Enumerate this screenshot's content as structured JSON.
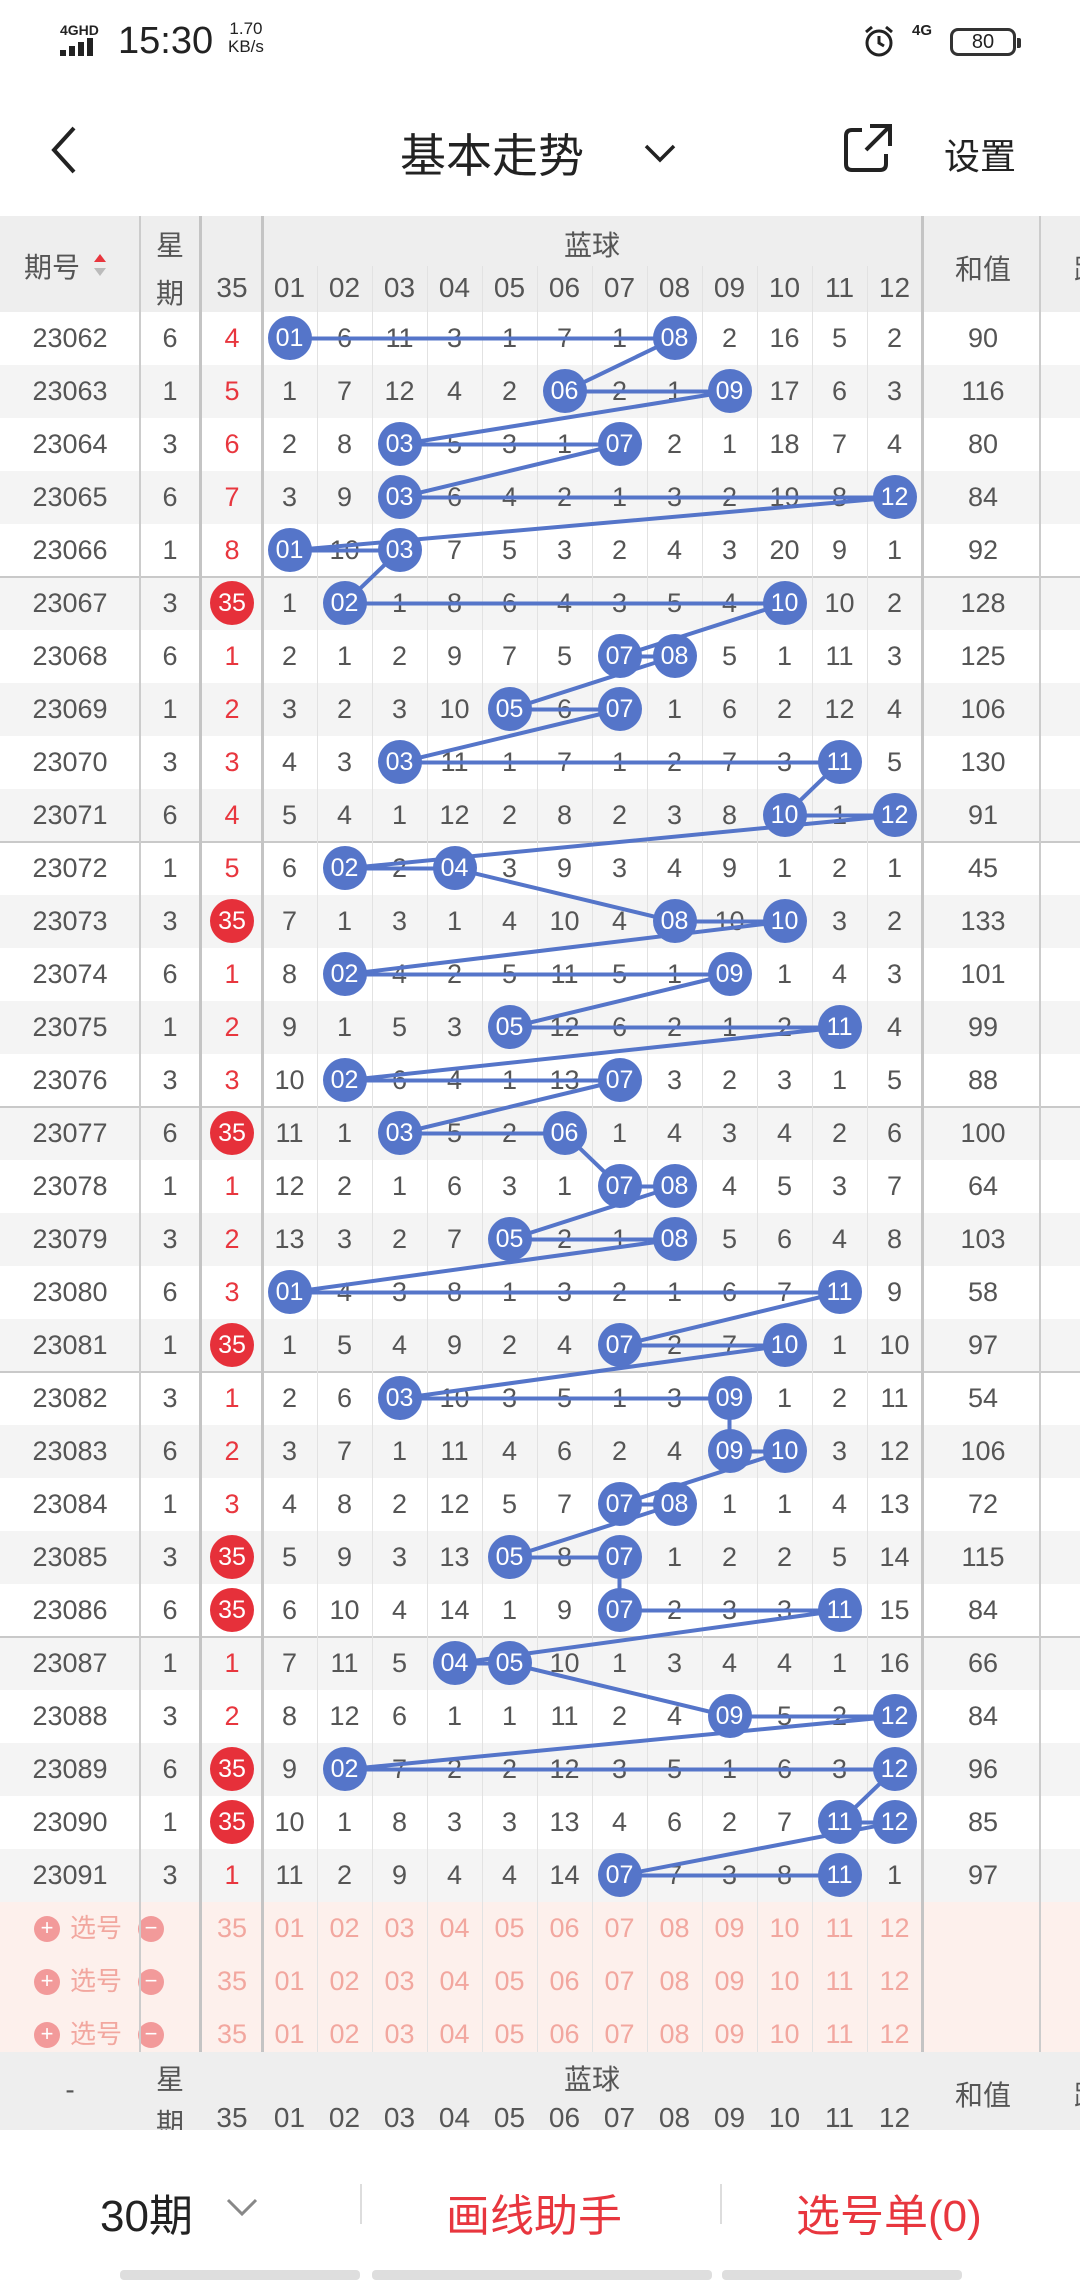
{
  "status_bar": {
    "network": "4GHD",
    "time": "15:30",
    "speed_value": "1.70",
    "speed_unit": "KB/s",
    "network2": "4G",
    "battery": "80"
  },
  "header": {
    "title": "基本走势",
    "settings_label": "设置"
  },
  "table_header": {
    "issue": "期号",
    "week_line1": "星",
    "week_line2": "期",
    "red_col": "35",
    "blue_group": "蓝球",
    "blue_cols": [
      "01",
      "02",
      "03",
      "04",
      "05",
      "06",
      "07",
      "08",
      "09",
      "10",
      "11",
      "12"
    ],
    "sum": "和值",
    "extra": "跟"
  },
  "rows": [
    {
      "issue": "23062",
      "week": "6",
      "red": "4",
      "red_ball": false,
      "cells": [
        "01",
        "6",
        "11",
        "3",
        "1",
        "7",
        "1",
        "08",
        "2",
        "16",
        "5",
        "2"
      ],
      "hits": [
        1,
        8
      ],
      "sum": "90"
    },
    {
      "issue": "23063",
      "week": "1",
      "red": "5",
      "red_ball": false,
      "cells": [
        "1",
        "7",
        "12",
        "4",
        "2",
        "06",
        "2",
        "1",
        "09",
        "17",
        "6",
        "3"
      ],
      "hits": [
        6,
        9
      ],
      "sum": "116"
    },
    {
      "issue": "23064",
      "week": "3",
      "red": "6",
      "red_ball": false,
      "cells": [
        "2",
        "8",
        "03",
        "5",
        "3",
        "1",
        "07",
        "2",
        "1",
        "18",
        "7",
        "4"
      ],
      "hits": [
        3,
        7
      ],
      "sum": "80"
    },
    {
      "issue": "23065",
      "week": "6",
      "red": "7",
      "red_ball": false,
      "cells": [
        "3",
        "9",
        "03",
        "6",
        "4",
        "2",
        "1",
        "3",
        "2",
        "19",
        "8",
        "12"
      ],
      "hits": [
        3,
        12
      ],
      "sum": "84"
    },
    {
      "issue": "23066",
      "week": "1",
      "red": "8",
      "red_ball": false,
      "cells": [
        "01",
        "10",
        "03",
        "7",
        "5",
        "3",
        "2",
        "4",
        "3",
        "20",
        "9",
        "1"
      ],
      "hits": [
        1,
        3
      ],
      "sum": "92"
    },
    {
      "issue": "23067",
      "week": "3",
      "red": "35",
      "red_ball": true,
      "cells": [
        "1",
        "02",
        "1",
        "8",
        "6",
        "4",
        "3",
        "5",
        "4",
        "10",
        "10",
        "2"
      ],
      "hits": [
        2,
        10
      ],
      "sum": "128"
    },
    {
      "issue": "23068",
      "week": "6",
      "red": "1",
      "red_ball": false,
      "cells": [
        "2",
        "1",
        "2",
        "9",
        "7",
        "5",
        "07",
        "08",
        "5",
        "1",
        "11",
        "3"
      ],
      "hits": [
        7,
        8
      ],
      "sum": "125"
    },
    {
      "issue": "23069",
      "week": "1",
      "red": "2",
      "red_ball": false,
      "cells": [
        "3",
        "2",
        "3",
        "10",
        "05",
        "6",
        "07",
        "1",
        "6",
        "2",
        "12",
        "4"
      ],
      "hits": [
        5,
        7
      ],
      "sum": "106"
    },
    {
      "issue": "23070",
      "week": "3",
      "red": "3",
      "red_ball": false,
      "cells": [
        "4",
        "3",
        "03",
        "11",
        "1",
        "7",
        "1",
        "2",
        "7",
        "3",
        "11",
        "5"
      ],
      "hits": [
        3,
        11
      ],
      "sum": "130"
    },
    {
      "issue": "23071",
      "week": "6",
      "red": "4",
      "red_ball": false,
      "cells": [
        "5",
        "4",
        "1",
        "12",
        "2",
        "8",
        "2",
        "3",
        "8",
        "10",
        "1",
        "12"
      ],
      "hits": [
        10,
        12
      ],
      "sum": "91"
    },
    {
      "issue": "23072",
      "week": "1",
      "red": "5",
      "red_ball": false,
      "cells": [
        "6",
        "02",
        "2",
        "04",
        "3",
        "9",
        "3",
        "4",
        "9",
        "1",
        "2",
        "1"
      ],
      "hits": [
        2,
        4
      ],
      "sum": "45"
    },
    {
      "issue": "23073",
      "week": "3",
      "red": "35",
      "red_ball": true,
      "cells": [
        "7",
        "1",
        "3",
        "1",
        "4",
        "10",
        "4",
        "08",
        "10",
        "10",
        "3",
        "2"
      ],
      "hits": [
        8,
        10
      ],
      "sum": "133"
    },
    {
      "issue": "23074",
      "week": "6",
      "red": "1",
      "red_ball": false,
      "cells": [
        "8",
        "02",
        "4",
        "2",
        "5",
        "11",
        "5",
        "1",
        "09",
        "1",
        "4",
        "3"
      ],
      "hits": [
        2,
        9
      ],
      "sum": "101"
    },
    {
      "issue": "23075",
      "week": "1",
      "red": "2",
      "red_ball": false,
      "cells": [
        "9",
        "1",
        "5",
        "3",
        "05",
        "12",
        "6",
        "2",
        "1",
        "2",
        "11",
        "4"
      ],
      "hits": [
        5,
        11
      ],
      "sum": "99"
    },
    {
      "issue": "23076",
      "week": "3",
      "red": "3",
      "red_ball": false,
      "cells": [
        "10",
        "02",
        "6",
        "4",
        "1",
        "13",
        "07",
        "3",
        "2",
        "3",
        "1",
        "5"
      ],
      "hits": [
        2,
        7
      ],
      "sum": "88"
    },
    {
      "issue": "23077",
      "week": "6",
      "red": "35",
      "red_ball": true,
      "cells": [
        "11",
        "1",
        "03",
        "5",
        "2",
        "06",
        "1",
        "4",
        "3",
        "4",
        "2",
        "6"
      ],
      "hits": [
        3,
        6
      ],
      "sum": "100"
    },
    {
      "issue": "23078",
      "week": "1",
      "red": "1",
      "red_ball": false,
      "cells": [
        "12",
        "2",
        "1",
        "6",
        "3",
        "1",
        "07",
        "08",
        "4",
        "5",
        "3",
        "7"
      ],
      "hits": [
        7,
        8
      ],
      "sum": "64"
    },
    {
      "issue": "23079",
      "week": "3",
      "red": "2",
      "red_ball": false,
      "cells": [
        "13",
        "3",
        "2",
        "7",
        "05",
        "2",
        "1",
        "08",
        "5",
        "6",
        "4",
        "8"
      ],
      "hits": [
        5,
        8
      ],
      "sum": "103"
    },
    {
      "issue": "23080",
      "week": "6",
      "red": "3",
      "red_ball": false,
      "cells": [
        "01",
        "4",
        "3",
        "8",
        "1",
        "3",
        "2",
        "1",
        "6",
        "7",
        "11",
        "9"
      ],
      "hits": [
        1,
        11
      ],
      "sum": "58"
    },
    {
      "issue": "23081",
      "week": "1",
      "red": "35",
      "red_ball": true,
      "cells": [
        "1",
        "5",
        "4",
        "9",
        "2",
        "4",
        "07",
        "2",
        "7",
        "10",
        "1",
        "10"
      ],
      "hits": [
        7,
        10
      ],
      "sum": "97"
    },
    {
      "issue": "23082",
      "week": "3",
      "red": "1",
      "red_ball": false,
      "cells": [
        "2",
        "6",
        "03",
        "10",
        "3",
        "5",
        "1",
        "3",
        "09",
        "1",
        "2",
        "11"
      ],
      "hits": [
        3,
        9
      ],
      "sum": "54"
    },
    {
      "issue": "23083",
      "week": "6",
      "red": "2",
      "red_ball": false,
      "cells": [
        "3",
        "7",
        "1",
        "11",
        "4",
        "6",
        "2",
        "4",
        "09",
        "10",
        "3",
        "12"
      ],
      "hits": [
        9,
        10
      ],
      "sum": "106"
    },
    {
      "issue": "23084",
      "week": "1",
      "red": "3",
      "red_ball": false,
      "cells": [
        "4",
        "8",
        "2",
        "12",
        "5",
        "7",
        "07",
        "08",
        "1",
        "1",
        "4",
        "13"
      ],
      "hits": [
        7,
        8
      ],
      "sum": "72"
    },
    {
      "issue": "23085",
      "week": "3",
      "red": "35",
      "red_ball": true,
      "cells": [
        "5",
        "9",
        "3",
        "13",
        "05",
        "8",
        "07",
        "1",
        "2",
        "2",
        "5",
        "14"
      ],
      "hits": [
        5,
        7
      ],
      "sum": "115"
    },
    {
      "issue": "23086",
      "week": "6",
      "red": "35",
      "red_ball": true,
      "cells": [
        "6",
        "10",
        "4",
        "14",
        "1",
        "9",
        "07",
        "2",
        "3",
        "3",
        "11",
        "15"
      ],
      "hits": [
        7,
        11
      ],
      "sum": "84"
    },
    {
      "issue": "23087",
      "week": "1",
      "red": "1",
      "red_ball": false,
      "cells": [
        "7",
        "11",
        "5",
        "04",
        "05",
        "10",
        "1",
        "3",
        "4",
        "4",
        "1",
        "16"
      ],
      "hits": [
        4,
        5
      ],
      "sum": "66"
    },
    {
      "issue": "23088",
      "week": "3",
      "red": "2",
      "red_ball": false,
      "cells": [
        "8",
        "12",
        "6",
        "1",
        "1",
        "11",
        "2",
        "4",
        "09",
        "5",
        "2",
        "12"
      ],
      "hits": [
        9,
        12
      ],
      "sum": "84"
    },
    {
      "issue": "23089",
      "week": "6",
      "red": "35",
      "red_ball": true,
      "cells": [
        "9",
        "02",
        "7",
        "2",
        "2",
        "12",
        "3",
        "5",
        "1",
        "6",
        "3",
        "12"
      ],
      "hits": [
        2,
        12
      ],
      "sum": "96"
    },
    {
      "issue": "23090",
      "week": "1",
      "red": "35",
      "red_ball": true,
      "cells": [
        "10",
        "1",
        "8",
        "3",
        "3",
        "13",
        "4",
        "6",
        "2",
        "7",
        "11",
        "12"
      ],
      "hits": [
        11,
        12
      ],
      "sum": "85"
    },
    {
      "issue": "23091",
      "week": "3",
      "red": "1",
      "red_ball": false,
      "cells": [
        "11",
        "2",
        "9",
        "4",
        "4",
        "14",
        "07",
        "7",
        "3",
        "8",
        "11",
        "1"
      ],
      "hits": [
        7,
        11
      ],
      "sum": "97"
    }
  ],
  "pick_rows": [
    {
      "label": "选号",
      "red": "35",
      "cells": [
        "01",
        "02",
        "03",
        "04",
        "05",
        "06",
        "07",
        "08",
        "09",
        "10",
        "11",
        "12"
      ]
    },
    {
      "label": "选号",
      "red": "35",
      "cells": [
        "01",
        "02",
        "03",
        "04",
        "05",
        "06",
        "07",
        "08",
        "09",
        "10",
        "11",
        "12"
      ]
    },
    {
      "label": "选号",
      "red": "35",
      "cells": [
        "01",
        "02",
        "03",
        "04",
        "05",
        "06",
        "07",
        "08",
        "09",
        "10",
        "11",
        "12"
      ]
    }
  ],
  "footer_header": {
    "issue": "-",
    "week_line1": "星",
    "week_line2": "期",
    "red_col": "35",
    "blue_group": "蓝球",
    "blue_cols": [
      "01",
      "02",
      "03",
      "04",
      "05",
      "06",
      "07",
      "08",
      "09",
      "10",
      "11",
      "12"
    ],
    "sum": "和值",
    "extra": "跟"
  },
  "bottom_bar": {
    "periods": "30期",
    "draw_helper": "画线助手",
    "pick_list": "选号单(0)"
  },
  "colors": {
    "blue_ball": "#5575c9",
    "red_ball": "#e6303a",
    "red_text": "#e8363e",
    "pick_text": "#f2a79f"
  },
  "icons": [
    "back-arrow-icon",
    "chevron-down-icon",
    "share-icon",
    "sort-icon",
    "alarm-icon",
    "plus-icon",
    "minus-icon"
  ]
}
